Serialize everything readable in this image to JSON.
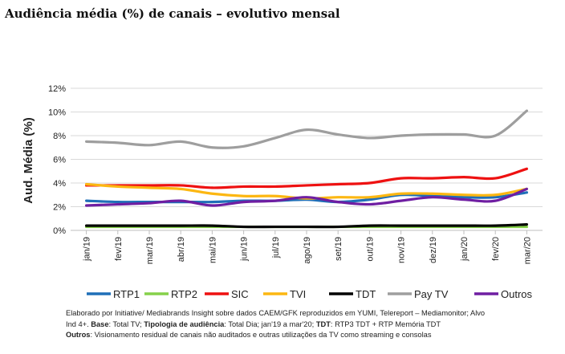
{
  "title": "Audiência média (%) de canais – evolutivo mensal",
  "chart_data": {
    "type": "line",
    "title": "",
    "ylabel": "Aud. Média (%)",
    "xlabel": "",
    "ylim": [
      0,
      12
    ],
    "yticks": [
      0,
      2,
      4,
      6,
      8,
      10,
      12
    ],
    "ytick_format": "%",
    "grid": true,
    "legend_position": "bottom",
    "categories": [
      "jan/19",
      "fev/19",
      "mar/19",
      "abr/19",
      "mai/19",
      "jun/19",
      "jul/19",
      "ago/19",
      "set/19",
      "out/19",
      "nov/19",
      "dez/19",
      "jan/20",
      "fev/20",
      "mar/20"
    ],
    "series": [
      {
        "name": "RTP1",
        "color": "#1f6fb8",
        "values": [
          2.5,
          2.4,
          2.4,
          2.4,
          2.4,
          2.5,
          2.5,
          2.6,
          2.4,
          2.6,
          3.0,
          2.9,
          2.8,
          2.8,
          3.2
        ]
      },
      {
        "name": "RTP2",
        "color": "#86d14a",
        "values": [
          0.3,
          0.3,
          0.3,
          0.3,
          0.3,
          0.3,
          0.3,
          0.3,
          0.3,
          0.3,
          0.3,
          0.3,
          0.3,
          0.3,
          0.3
        ]
      },
      {
        "name": "SIC",
        "color": "#ee1111",
        "values": [
          3.8,
          3.8,
          3.8,
          3.8,
          3.6,
          3.7,
          3.7,
          3.8,
          3.9,
          4.0,
          4.4,
          4.4,
          4.5,
          4.4,
          5.2
        ]
      },
      {
        "name": "TVI",
        "color": "#fcb712",
        "values": [
          3.9,
          3.7,
          3.6,
          3.5,
          3.1,
          2.9,
          2.9,
          2.7,
          2.8,
          2.8,
          3.1,
          3.1,
          3.0,
          3.0,
          3.5
        ]
      },
      {
        "name": "TDT",
        "color": "#000000",
        "values": [
          0.4,
          0.4,
          0.4,
          0.4,
          0.4,
          0.3,
          0.3,
          0.3,
          0.3,
          0.4,
          0.4,
          0.4,
          0.4,
          0.4,
          0.5
        ]
      },
      {
        "name": "Pay TV",
        "color": "#9e9e9e",
        "values": [
          7.5,
          7.4,
          7.2,
          7.5,
          7.0,
          7.1,
          7.8,
          8.5,
          8.1,
          7.8,
          8.0,
          8.1,
          8.1,
          8.0,
          10.1
        ]
      },
      {
        "name": "Outros",
        "color": "#6f1ea2",
        "values": [
          2.1,
          2.2,
          2.3,
          2.5,
          2.1,
          2.4,
          2.5,
          2.8,
          2.4,
          2.2,
          2.5,
          2.8,
          2.6,
          2.5,
          3.5
        ]
      }
    ]
  },
  "note": {
    "line1": "Elaborado por Initiative/ Mediabrands Insight sobre dados CAEM/GFK reproduzidos em YUMI, Telereport – Mediamonitor; Alvo",
    "line2_pre": "Ind 4+. ",
    "base_label": "Base",
    "base_text": ": Total TV; ",
    "tipologia_label": "Tipologia de audiência",
    "tipologia_text": ": Total Dia; jan'19 a mar'20; ",
    "tdt_label": "TDT",
    "tdt_text": ": RTP3 TDT + RTP Memória TDT",
    "outros_label": "Outros",
    "outros_text": ": Visionamento residual de canais não auditados e outras utilizações da TV como streaming e consolas"
  }
}
